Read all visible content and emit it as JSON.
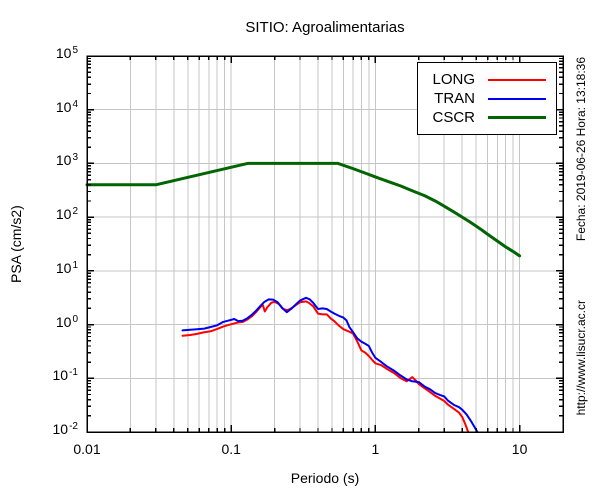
{
  "annotations": {
    "right_top_rotated": "Fecha: 2019-06-26 Hora: 13:18:36",
    "right_bottom_rotated": "http://www.lisucr.ac.cr"
  },
  "chart_data": {
    "type": "line",
    "title": "SITIO: Agroalimentarias",
    "xlabel": "Periodo (s)",
    "ylabel": "PSA (cm/s2)",
    "xscale": "log",
    "yscale": "log",
    "xlim": [
      0.01,
      20
    ],
    "ylim": [
      0.01,
      100000
    ],
    "x_ticks": [
      {
        "value": 0.01,
        "label": "0.01"
      },
      {
        "value": 0.1,
        "label": "0.1"
      },
      {
        "value": 1,
        "label": "1"
      },
      {
        "value": 10,
        "label": "10"
      }
    ],
    "y_tick_base": "10",
    "y_tick_exponents": [
      5,
      4,
      3,
      2,
      1,
      0,
      -1,
      -2
    ],
    "grid": {
      "on": true,
      "color": "#c6c6c6",
      "x_minor_gridlines": true,
      "y_major_gridlines_only": true
    },
    "frame_color": "#000000",
    "legend": {
      "position": "top-right",
      "entries": [
        {
          "label": "LONG",
          "color": "#ff0000",
          "line_width": 2
        },
        {
          "label": "TRAN",
          "color": "#0000ee",
          "line_width": 2
        },
        {
          "label": "CSCR",
          "color": "#006400",
          "line_width": 3
        }
      ]
    },
    "series": [
      {
        "name": "LONG",
        "color": "#ff0000",
        "width": 2,
        "points": [
          [
            0.046,
            0.62
          ],
          [
            0.052,
            0.64
          ],
          [
            0.058,
            0.67
          ],
          [
            0.065,
            0.72
          ],
          [
            0.072,
            0.75
          ],
          [
            0.08,
            0.83
          ],
          [
            0.088,
            0.92
          ],
          [
            0.095,
            0.98
          ],
          [
            0.105,
            1.05
          ],
          [
            0.112,
            1.1
          ],
          [
            0.12,
            1.12
          ],
          [
            0.13,
            1.25
          ],
          [
            0.14,
            1.45
          ],
          [
            0.15,
            1.75
          ],
          [
            0.16,
            2.15
          ],
          [
            0.166,
            2.3
          ],
          [
            0.171,
            1.75
          ],
          [
            0.178,
            2.1
          ],
          [
            0.19,
            2.55
          ],
          [
            0.2,
            2.65
          ],
          [
            0.215,
            2.4
          ],
          [
            0.23,
            1.95
          ],
          [
            0.245,
            1.85
          ],
          [
            0.26,
            2.0
          ],
          [
            0.28,
            2.3
          ],
          [
            0.3,
            2.6
          ],
          [
            0.33,
            2.7
          ],
          [
            0.345,
            2.55
          ],
          [
            0.37,
            2.2
          ],
          [
            0.4,
            1.6
          ],
          [
            0.43,
            1.55
          ],
          [
            0.46,
            1.55
          ],
          [
            0.49,
            1.3
          ],
          [
            0.52,
            1.15
          ],
          [
            0.56,
            0.95
          ],
          [
            0.6,
            0.82
          ],
          [
            0.65,
            0.75
          ],
          [
            0.7,
            0.68
          ],
          [
            0.75,
            0.48
          ],
          [
            0.8,
            0.33
          ],
          [
            0.85,
            0.3
          ],
          [
            0.9,
            0.26
          ],
          [
            0.95,
            0.22
          ],
          [
            1.0,
            0.19
          ],
          [
            1.1,
            0.175
          ],
          [
            1.2,
            0.15
          ],
          [
            1.35,
            0.125
          ],
          [
            1.5,
            0.1
          ],
          [
            1.65,
            0.088
          ],
          [
            1.8,
            0.105
          ],
          [
            1.9,
            0.092
          ],
          [
            2.0,
            0.078
          ],
          [
            2.2,
            0.065
          ],
          [
            2.4,
            0.055
          ],
          [
            2.6,
            0.047
          ],
          [
            2.8,
            0.042
          ],
          [
            3.0,
            0.038
          ],
          [
            3.2,
            0.032
          ],
          [
            3.5,
            0.027
          ],
          [
            3.8,
            0.023
          ],
          [
            4.0,
            0.019
          ],
          [
            4.2,
            0.014
          ],
          [
            4.4,
            0.01
          ]
        ]
      },
      {
        "name": "TRAN",
        "color": "#0000ee",
        "width": 2,
        "points": [
          [
            0.046,
            0.78
          ],
          [
            0.052,
            0.8
          ],
          [
            0.058,
            0.82
          ],
          [
            0.065,
            0.84
          ],
          [
            0.072,
            0.9
          ],
          [
            0.08,
            0.97
          ],
          [
            0.088,
            1.12
          ],
          [
            0.095,
            1.18
          ],
          [
            0.105,
            1.27
          ],
          [
            0.112,
            1.16
          ],
          [
            0.12,
            1.18
          ],
          [
            0.13,
            1.32
          ],
          [
            0.14,
            1.55
          ],
          [
            0.15,
            1.85
          ],
          [
            0.16,
            2.25
          ],
          [
            0.17,
            2.65
          ],
          [
            0.182,
            2.95
          ],
          [
            0.195,
            2.92
          ],
          [
            0.21,
            2.6
          ],
          [
            0.225,
            2.05
          ],
          [
            0.243,
            1.7
          ],
          [
            0.26,
            1.95
          ],
          [
            0.28,
            2.35
          ],
          [
            0.3,
            2.8
          ],
          [
            0.33,
            3.15
          ],
          [
            0.35,
            2.95
          ],
          [
            0.37,
            2.55
          ],
          [
            0.4,
            1.95
          ],
          [
            0.43,
            2.0
          ],
          [
            0.46,
            1.95
          ],
          [
            0.49,
            1.75
          ],
          [
            0.52,
            1.6
          ],
          [
            0.56,
            1.45
          ],
          [
            0.6,
            1.35
          ],
          [
            0.63,
            1.2
          ],
          [
            0.66,
            0.9
          ],
          [
            0.7,
            0.72
          ],
          [
            0.75,
            0.55
          ],
          [
            0.8,
            0.48
          ],
          [
            0.85,
            0.44
          ],
          [
            0.9,
            0.4
          ],
          [
            0.95,
            0.3
          ],
          [
            1.0,
            0.24
          ],
          [
            1.1,
            0.2
          ],
          [
            1.2,
            0.167
          ],
          [
            1.35,
            0.138
          ],
          [
            1.5,
            0.112
          ],
          [
            1.65,
            0.095
          ],
          [
            1.8,
            0.088
          ],
          [
            2.0,
            0.085
          ],
          [
            2.2,
            0.07
          ],
          [
            2.4,
            0.062
          ],
          [
            2.6,
            0.053
          ],
          [
            2.8,
            0.049
          ],
          [
            3.0,
            0.046
          ],
          [
            3.2,
            0.038
          ],
          [
            3.5,
            0.032
          ],
          [
            3.8,
            0.029
          ],
          [
            4.0,
            0.026
          ],
          [
            4.3,
            0.021
          ],
          [
            4.6,
            0.016
          ],
          [
            4.9,
            0.012
          ],
          [
            5.1,
            0.01
          ]
        ]
      },
      {
        "name": "CSCR",
        "color": "#006400",
        "width": 3,
        "points": [
          [
            0.01,
            400
          ],
          [
            0.03,
            400
          ],
          [
            0.13,
            1000
          ],
          [
            0.55,
            1000
          ],
          [
            0.7,
            800
          ],
          [
            0.85,
            660
          ],
          [
            1.0,
            560
          ],
          [
            1.2,
            470
          ],
          [
            1.5,
            380
          ],
          [
            1.8,
            310
          ],
          [
            2.2,
            250
          ],
          [
            2.6,
            200
          ],
          [
            3.0,
            160
          ],
          [
            3.5,
            125
          ],
          [
            4.0,
            100
          ],
          [
            4.5,
            82
          ],
          [
            5.0,
            68
          ],
          [
            5.5,
            57
          ],
          [
            6.0,
            48
          ],
          [
            7.0,
            36
          ],
          [
            8.0,
            28
          ],
          [
            9.0,
            23
          ],
          [
            10.0,
            19
          ]
        ]
      }
    ]
  }
}
